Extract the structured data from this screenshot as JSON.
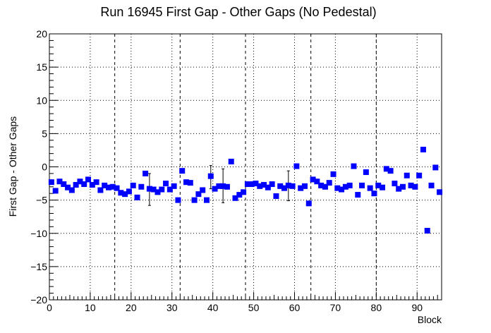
{
  "chart_data": {
    "type": "scatter",
    "title": "Run 16945 First Gap - Other Gaps (No Pedestal)",
    "xlabel": "Block",
    "ylabel": "First Gap - Other Gaps",
    "xlim": [
      0,
      96
    ],
    "ylim": [
      -20,
      20
    ],
    "x_ticks": [
      0,
      10,
      20,
      30,
      40,
      50,
      60,
      70,
      80,
      90
    ],
    "y_ticks": [
      -20,
      -15,
      -10,
      -5,
      0,
      5,
      10,
      15,
      20
    ],
    "y_tick_labels": [
      "−20",
      "−15",
      "−10",
      "−5",
      "0",
      "5",
      "10",
      "15",
      "20"
    ],
    "grid": "dotted",
    "vertical_dashed_lines_at": [
      16,
      32,
      48,
      64,
      80
    ],
    "marker_color": "#0000ff",
    "series": [
      {
        "x": [
          0.5,
          1.5,
          2.5,
          3.5,
          4.5,
          5.5,
          6.5,
          7.5,
          8.5,
          9.5,
          10.5,
          11.5,
          12.5,
          13.5,
          14.5,
          15.5,
          16.5,
          17.5,
          18.5,
          19.5,
          20.5,
          21.5,
          22.5,
          23.5,
          24.5,
          25.5,
          26.5,
          27.5,
          28.5,
          29.5,
          30.5,
          31.5,
          32.5,
          33.5,
          34.5,
          35.5,
          36.5,
          37.5,
          38.5,
          39.5,
          40.5,
          41.5,
          42.5,
          43.5,
          44.5,
          45.5,
          46.5,
          47.5,
          48.5,
          49.5,
          50.5,
          51.5,
          52.5,
          53.5,
          54.5,
          55.5,
          56.5,
          57.5,
          58.5,
          59.5,
          60.5,
          61.5,
          62.5,
          63.5,
          64.5,
          65.5,
          66.5,
          67.5,
          68.5,
          69.5,
          70.5,
          71.5,
          72.5,
          73.5,
          74.5,
          75.5,
          76.5,
          77.5,
          78.5,
          79.5,
          80.5,
          81.5,
          82.5,
          83.5,
          84.5,
          85.5,
          86.5,
          87.5,
          88.5,
          89.5,
          90.5,
          91.5,
          92.5,
          93.5,
          94.5,
          95.5
        ],
        "y": [
          -2.3,
          -3.6,
          -2.2,
          -2.6,
          -3.1,
          -3.5,
          -2.7,
          -2.2,
          -2.6,
          -1.9,
          -2.7,
          -2.3,
          -3.5,
          -2.8,
          -3.1,
          -3.0,
          -3.2,
          -3.9,
          -4.1,
          -3.7,
          -2.8,
          -4.6,
          -3.0,
          -1.0,
          -3.3,
          -3.4,
          -3.8,
          -3.4,
          -2.5,
          -3.4,
          -2.9,
          -5.0,
          -0.6,
          -2.3,
          -2.4,
          -5.0,
          -4.1,
          -3.5,
          -5.0,
          -1.4,
          -3.3,
          -2.9,
          -2.9,
          -3.0,
          0.8,
          -4.7,
          -4.2,
          -3.8,
          -2.6,
          -2.6,
          -2.5,
          -2.9,
          -2.7,
          -3.1,
          -2.6,
          -4.4,
          -2.9,
          -3.2,
          -2.8,
          -2.9,
          0.1,
          -3.2,
          -2.9,
          -5.5,
          -1.9,
          -2.2,
          -2.8,
          -3.0,
          -2.4,
          -1.1,
          -3.2,
          -3.4,
          -3.0,
          -2.8,
          0.1,
          -4.2,
          -2.8,
          -0.8,
          -3.2,
          -4.0,
          -2.8,
          -3.1,
          -0.3,
          -0.6,
          -2.5,
          -3.3,
          -3.0,
          -1.3,
          -2.8,
          -3.0,
          -1.3,
          2.6,
          -9.6,
          -2.8,
          -0.1,
          -3.8
        ]
      }
    ],
    "error_bars": [
      {
        "x": 24.5,
        "y": -3.3,
        "low": -5.8,
        "high": -1.0
      },
      {
        "x": 39.5,
        "y": -1.4,
        "low": -3.3,
        "high": 0.2
      },
      {
        "x": 42.5,
        "y": -2.9,
        "low": -5.4,
        "high": -0.3
      },
      {
        "x": 58.5,
        "y": -2.8,
        "low": -5.1,
        "high": -0.6
      }
    ]
  }
}
